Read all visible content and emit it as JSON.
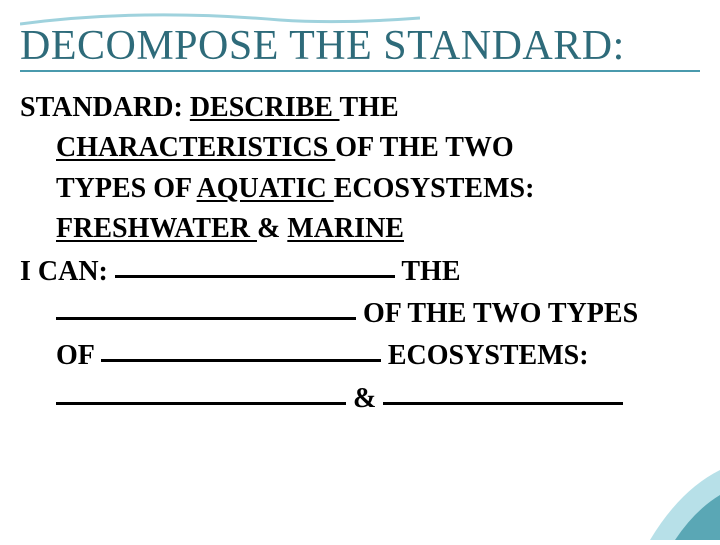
{
  "title": {
    "text": "DECOMPOSE THE STANDARD:",
    "color": "#2e6b7a",
    "underline_color": "#4a9aad",
    "swoosh_color": "#9fd2dd",
    "fontsize": 42
  },
  "body": {
    "color": "#000000",
    "fontsize": 28,
    "line1_lead": "STANDARD:  ",
    "line1_u1": "DESCRIBE ",
    "line1_after": " THE",
    "line2_u1": "CHARACTERISTICS ",
    "line2_after": " OF THE TWO",
    "line3_before": "TYPES OF ",
    "line3_u1": "AQUATIC ",
    "line3_after": " ECOSYSTEMS:",
    "line4_u1": "FRESHWATER ",
    "line4_amp": " & ",
    "line4_u2": "MARINE",
    "line5_lead": "I CAN:  ",
    "line5_after": " THE",
    "line6_after": " OF THE TWO TYPES",
    "line7_before": "OF ",
    "line7_after": " ECOSYSTEMS:",
    "line8_amp": " & ",
    "blank_widths": {
      "b1": 280,
      "b2": 300,
      "b3": 280,
      "b4": 290,
      "b5": 240
    }
  },
  "corner": {
    "outer_color": "#b7e0e8",
    "inner_color": "#5aa7b5"
  },
  "background_color": "#ffffff"
}
